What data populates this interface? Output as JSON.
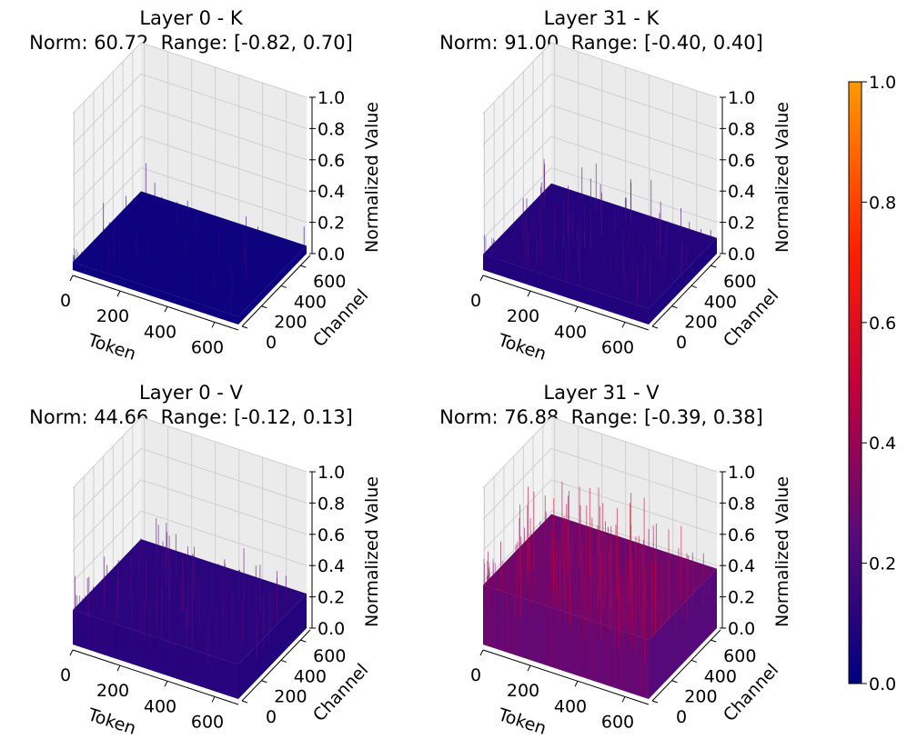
{
  "chart_data": [
    {
      "type": "surface3d",
      "panel": "top-left",
      "title": "Layer 0 - K",
      "subtitle": "Norm: 60.72, Range: [-0.82, 0.70]",
      "norm": 60.72,
      "range": [
        -0.82,
        0.7
      ],
      "xlabel": "Token",
      "ylabel": "Channel",
      "zlabel": "Normalized Value",
      "x_ticks": [
        "0",
        "200",
        "400",
        "600"
      ],
      "y_ticks": [
        "0",
        "200",
        "400",
        "600"
      ],
      "z_ticks": [
        "0.0",
        "0.2",
        "0.4",
        "0.6",
        "0.8",
        "1.0"
      ],
      "xlim": [
        0,
        700
      ],
      "ylim": [
        0,
        700
      ],
      "zlim": [
        0,
        1
      ],
      "surface_level": 0.05,
      "spike_max": 0.25,
      "spike_density": 0.25,
      "mean_color_value": 0.04
    },
    {
      "type": "surface3d",
      "panel": "top-right",
      "title": "Layer 31 - K",
      "subtitle": "Norm: 91.00, Range: [-0.40, 0.40]",
      "norm": 91.0,
      "range": [
        -0.4,
        0.4
      ],
      "xlabel": "Token",
      "ylabel": "Channel",
      "zlabel": "Normalized Value",
      "x_ticks": [
        "0",
        "200",
        "400",
        "600"
      ],
      "y_ticks": [
        "0",
        "200",
        "400",
        "600"
      ],
      "z_ticks": [
        "0.0",
        "0.2",
        "0.4",
        "0.6",
        "0.8",
        "1.0"
      ],
      "xlim": [
        0,
        700
      ],
      "ylim": [
        0,
        700
      ],
      "zlim": [
        0,
        1
      ],
      "surface_level": 0.1,
      "spike_max": 0.38,
      "spike_density": 0.5,
      "mean_color_value": 0.1
    },
    {
      "type": "surface3d",
      "panel": "bottom-left",
      "title": "Layer 0 - V",
      "subtitle": "Norm: 44.66, Range: [-0.12, 0.13]",
      "norm": 44.66,
      "range": [
        -0.12,
        0.13
      ],
      "xlabel": "Token",
      "ylabel": "Channel",
      "zlabel": "Normalized Value",
      "x_ticks": [
        "0",
        "200",
        "400",
        "600"
      ],
      "y_ticks": [
        "0",
        "200",
        "400",
        "600"
      ],
      "z_ticks": [
        "0.0",
        "0.2",
        "0.4",
        "0.6",
        "0.8",
        "1.0"
      ],
      "xlim": [
        0,
        700
      ],
      "ylim": [
        0,
        700
      ],
      "zlim": [
        0,
        1
      ],
      "surface_level": 0.22,
      "spike_max": 0.48,
      "spike_density": 0.45,
      "mean_color_value": 0.12
    },
    {
      "type": "surface3d",
      "panel": "bottom-right",
      "title": "Layer 31 - V",
      "subtitle": "Norm: 76.88, Range: [-0.39, 0.38]",
      "norm": 76.88,
      "range": [
        -0.39,
        0.38
      ],
      "xlabel": "Token",
      "ylabel": "Channel",
      "zlabel": "Normalized Value",
      "x_ticks": [
        "0",
        "200",
        "400",
        "600"
      ],
      "y_ticks": [
        "0",
        "200",
        "400",
        "600"
      ],
      "z_ticks": [
        "0.0",
        "0.2",
        "0.4",
        "0.6",
        "0.8",
        "1.0"
      ],
      "xlim": [
        0,
        700
      ],
      "ylim": [
        0,
        700
      ],
      "zlim": [
        0,
        1
      ],
      "surface_level": 0.38,
      "spike_max": 0.82,
      "spike_density": 0.6,
      "mean_color_value": 0.3
    }
  ],
  "colorbar": {
    "colormap": "plasma-like (navy → purple → red → orange)",
    "stops": [
      "#00007f",
      "#5a0a7a",
      "#c4003a",
      "#ff2000",
      "#ff9a00"
    ],
    "min": 0.0,
    "max": 1.0,
    "ticks": [
      "0.0",
      "0.2",
      "0.4",
      "0.6",
      "0.8",
      "1.0"
    ]
  },
  "colors": {
    "pane_left": "#f2f2f2",
    "pane_right": "#ebebeb",
    "pane_floor": "#f6f6f6",
    "grid": "#cfcfcf"
  }
}
